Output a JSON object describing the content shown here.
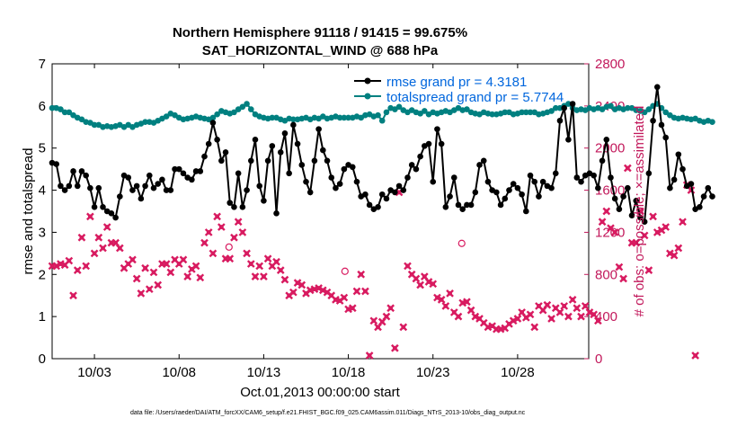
{
  "chart_data": {
    "type": "line",
    "title_line1": "Northern Hemisphere 91118 / 91415 = 99.675%",
    "title_line2": "SAT_HORIZONTAL_WIND @ 688 hPa",
    "xlabel": "Oct.01,2013 00:00:00 start",
    "ylabel_left": "rmse and totalspread",
    "ylabel_right": "# of obs: o=possible; ×=assimilated",
    "footer": "data file: /Users/raeder/DAI/ATM_forcXX/CAM6_setup/f.e21.FHIST_BGC.f09_025.CAM6assim.011/Diags_NTrS_2013-10/obs_diag_output.nc",
    "x_range": [
      0.5,
      32.2
    ],
    "x_ticks": [
      3,
      8,
      13,
      18,
      23,
      28
    ],
    "x_tick_labels": [
      "10/03",
      "10/08",
      "10/13",
      "10/18",
      "10/23",
      "10/28"
    ],
    "y_left_range": [
      0,
      7
    ],
    "y_left_ticks": [
      "0",
      "1",
      "2",
      "3",
      "4",
      "5",
      "6",
      "7"
    ],
    "y_right_range": [
      0,
      2800
    ],
    "y_right_ticks": [
      "0",
      "400",
      "800",
      "1200",
      "1600",
      "2000",
      "2400",
      "2800"
    ],
    "grid": false,
    "legend_position": "top-right",
    "colors": {
      "rmse": "#000000",
      "totalspread": "#008080",
      "obs": "#d81b60",
      "right_axis": "#c2185b"
    },
    "series": [
      {
        "name": "rmse grand pr = 4.3181",
        "x_start": 0.5,
        "x_step": 0.25,
        "values": [
          4.65,
          4.62,
          4.1,
          4.0,
          4.1,
          4.45,
          4.1,
          4.45,
          4.35,
          4.05,
          3.6,
          4.05,
          3.6,
          3.5,
          3.45,
          3.35,
          3.85,
          4.35,
          4.3,
          4.0,
          4.1,
          3.8,
          4.1,
          4.35,
          4.05,
          4.15,
          4.25,
          4.0,
          4.0,
          4.5,
          4.5,
          4.4,
          4.3,
          4.25,
          4.45,
          4.45,
          4.8,
          5.1,
          5.6,
          5.2,
          4.7,
          4.9,
          3.7,
          3.6,
          4.4,
          3.6,
          4.0,
          4.7,
          5.2,
          4.1,
          3.75,
          4.7,
          5.05,
          3.45,
          4.9,
          5.35,
          4.4,
          5.55,
          5.1,
          4.6,
          4.2,
          3.95,
          4.7,
          5.45,
          4.95,
          4.7,
          4.3,
          4.05,
          4.15,
          4.5,
          4.6,
          4.55,
          4.2,
          3.85,
          3.9,
          3.65,
          3.55,
          3.6,
          3.9,
          3.8,
          4.0,
          3.95,
          4.1,
          4.0,
          4.3,
          4.6,
          4.5,
          4.8,
          5.05,
          5.1,
          4.2,
          5.45,
          5.1,
          3.6,
          3.85,
          4.3,
          3.65,
          3.55,
          3.65,
          3.65,
          3.95,
          4.6,
          4.7,
          4.2,
          4.0,
          3.95,
          3.65,
          3.8,
          4.0,
          4.15,
          4.05,
          3.9,
          3.5,
          4.35,
          4.2,
          3.85,
          4.2,
          4.1,
          4.05,
          4.4,
          5.65,
          5.95,
          5.2,
          6.05,
          4.3,
          4.2,
          4.35,
          4.4,
          4.35,
          4.05,
          4.7,
          5.2,
          4.3,
          3.8,
          3.55,
          3.85,
          4.05,
          3.4,
          3.75,
          3.35,
          3.25,
          4.4,
          5.65,
          6.45,
          5.55,
          5.25,
          4.05,
          4.25,
          4.85,
          4.5,
          4.1,
          4.15,
          3.55,
          3.6,
          3.85,
          4.05,
          3.85
        ]
      },
      {
        "name": "totalspread grand pr = 5.7744",
        "x_start": 0.5,
        "x_step": 0.25,
        "values": [
          5.95,
          5.95,
          5.92,
          5.85,
          5.85,
          5.78,
          5.72,
          5.68,
          5.62,
          5.6,
          5.55,
          5.55,
          5.5,
          5.52,
          5.5,
          5.52,
          5.55,
          5.5,
          5.55,
          5.5,
          5.55,
          5.58,
          5.62,
          5.62,
          5.6,
          5.65,
          5.7,
          5.75,
          5.82,
          5.78,
          5.72,
          5.68,
          5.7,
          5.72,
          5.75,
          5.72,
          5.7,
          5.68,
          5.72,
          5.8,
          5.88,
          5.85,
          5.82,
          5.85,
          5.92,
          5.98,
          6.05,
          5.92,
          5.8,
          5.75,
          5.72,
          5.7,
          5.72,
          5.72,
          5.68,
          5.65,
          5.7,
          5.68,
          5.68,
          5.7,
          5.72,
          5.68,
          5.72,
          5.7,
          5.75,
          5.7,
          5.72,
          5.75,
          5.72,
          5.72,
          5.72,
          5.72,
          5.75,
          5.72,
          5.78,
          5.8,
          5.75,
          5.78,
          5.65,
          5.85,
          5.95,
          5.92,
          5.98,
          5.9,
          5.85,
          5.9,
          5.85,
          5.82,
          5.88,
          5.8,
          5.85,
          5.82,
          5.85,
          5.88,
          5.85,
          5.9,
          5.95,
          5.9,
          5.92,
          5.85,
          5.82,
          5.8,
          5.85,
          5.82,
          5.8,
          5.8,
          5.82,
          5.85,
          5.85,
          5.8,
          5.82,
          5.85,
          5.85,
          5.85,
          5.85,
          5.8,
          5.82,
          5.85,
          5.88,
          5.95,
          5.95,
          6.0,
          6.05,
          5.95,
          5.9,
          5.92,
          5.9,
          5.95,
          5.92,
          5.95,
          5.92,
          5.98,
          6.0,
          5.92,
          5.95,
          5.92,
          5.95,
          5.95,
          5.9,
          5.88,
          5.85,
          5.92,
          6.0,
          6.05,
          5.95,
          5.85,
          5.78,
          5.72,
          5.7,
          5.72,
          5.7,
          5.68,
          5.7,
          5.65,
          5.62,
          5.65,
          5.62
        ]
      },
      {
        "name": "# of obs possible/assimilated",
        "axis": "right",
        "x_start": 0.5,
        "x_step": 0.25,
        "values": [
          880,
          880,
          900,
          890,
          930,
          600,
          840,
          1150,
          880,
          1350,
          1000,
          1150,
          1050,
          1250,
          1100,
          1100,
          1050,
          860,
          900,
          940,
          760,
          620,
          860,
          660,
          820,
          700,
          900,
          900,
          820,
          940,
          900,
          940,
          780,
          850,
          880,
          770,
          1100,
          1200,
          1000,
          1350,
          1250,
          950,
          950,
          1150,
          1300,
          1200,
          1000,
          900,
          780,
          880,
          780,
          950,
          880,
          920,
          840,
          750,
          600,
          630,
          720,
          700,
          620,
          650,
          660,
          670,
          650,
          630,
          600,
          560,
          550,
          580,
          470,
          480,
          640,
          800,
          640,
          30,
          360,
          300,
          350,
          400,
          480,
          100,
          1580,
          300,
          880,
          800,
          760,
          700,
          780,
          730,
          710,
          580,
          560,
          500,
          620,
          440,
          400,
          530,
          540,
          460,
          400,
          380,
          340,
          300,
          310,
          280,
          280,
          290,
          330,
          360,
          380,
          440,
          390,
          420,
          300,
          500,
          460,
          510,
          380,
          480,
          440,
          500,
          400,
          560,
          480,
          400,
          500,
          440,
          420,
          360,
          1300,
          1400,
          1240,
          1200,
          870,
          760,
          1810,
          1100,
          1100,
          1400,
          1170,
          840,
          1350,
          1200,
          1220,
          1250,
          1000,
          980,
          1050,
          1300,
          1650,
          1600,
          30
        ]
      }
    ],
    "possible_markers": [
      {
        "x": 10.95,
        "y": 1060
      },
      {
        "x": 17.8,
        "y": 830
      },
      {
        "x": 24.7,
        "y": 1095
      }
    ]
  }
}
